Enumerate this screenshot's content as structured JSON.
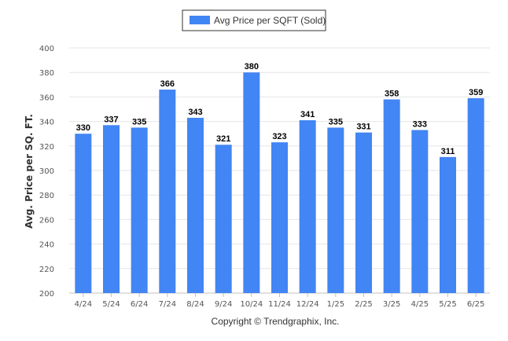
{
  "legend": {
    "label": "Avg Price per SQFT (Sold)"
  },
  "footer": {
    "copyright": "Copyright © Trendgraphix, Inc."
  },
  "colors": {
    "bar": "#4285f4",
    "grid": "#e6e6e6",
    "axis": "#c0c0c0",
    "legend_border": "#333333"
  },
  "chart_data": {
    "type": "bar",
    "title": "",
    "xlabel": "",
    "ylabel": "Avg. Price per SQ. FT.",
    "categories": [
      "4/24",
      "5/24",
      "6/24",
      "7/24",
      "8/24",
      "9/24",
      "10/24",
      "11/24",
      "12/24",
      "1/25",
      "2/25",
      "3/25",
      "4/25",
      "5/25",
      "6/25"
    ],
    "series": [
      {
        "name": "Avg Price per SQFT (Sold)",
        "values": [
          330,
          337,
          335,
          366,
          343,
          321,
          380,
          323,
          341,
          335,
          331,
          358,
          333,
          311,
          359
        ]
      }
    ],
    "ylim": [
      200,
      400
    ],
    "yticks": [
      200,
      220,
      240,
      260,
      280,
      300,
      320,
      340,
      360,
      380,
      400
    ],
    "grid": true,
    "legend_position": "top-center",
    "data_labels": true
  }
}
